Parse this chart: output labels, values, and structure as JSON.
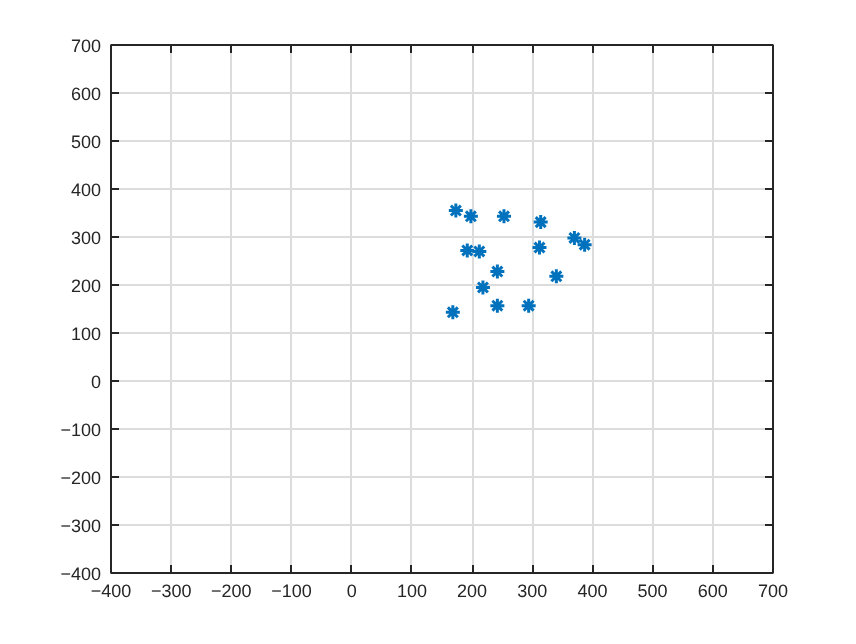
{
  "chart_data": {
    "type": "scatter",
    "marker": "cross",
    "grid": true,
    "x": [
      173,
      198,
      253,
      314,
      370,
      387,
      192,
      212,
      312,
      242,
      340,
      218,
      242,
      294,
      168
    ],
    "series": [
      {
        "color": "#0072bd",
        "values": [
          355,
          343,
          343,
          331,
          298,
          284,
          272,
          270,
          278,
          228,
          218,
          195,
          157,
          157,
          143
        ]
      }
    ],
    "xlim": [
      -400,
      700
    ],
    "xticks": [
      -400,
      -300,
      -200,
      -100,
      0,
      100,
      200,
      300,
      400,
      500,
      600,
      700
    ],
    "ylim": [
      -400,
      700
    ],
    "yticks": [
      -400,
      -300,
      -200,
      -100,
      0,
      100,
      200,
      300,
      400,
      500,
      600,
      700
    ]
  }
}
